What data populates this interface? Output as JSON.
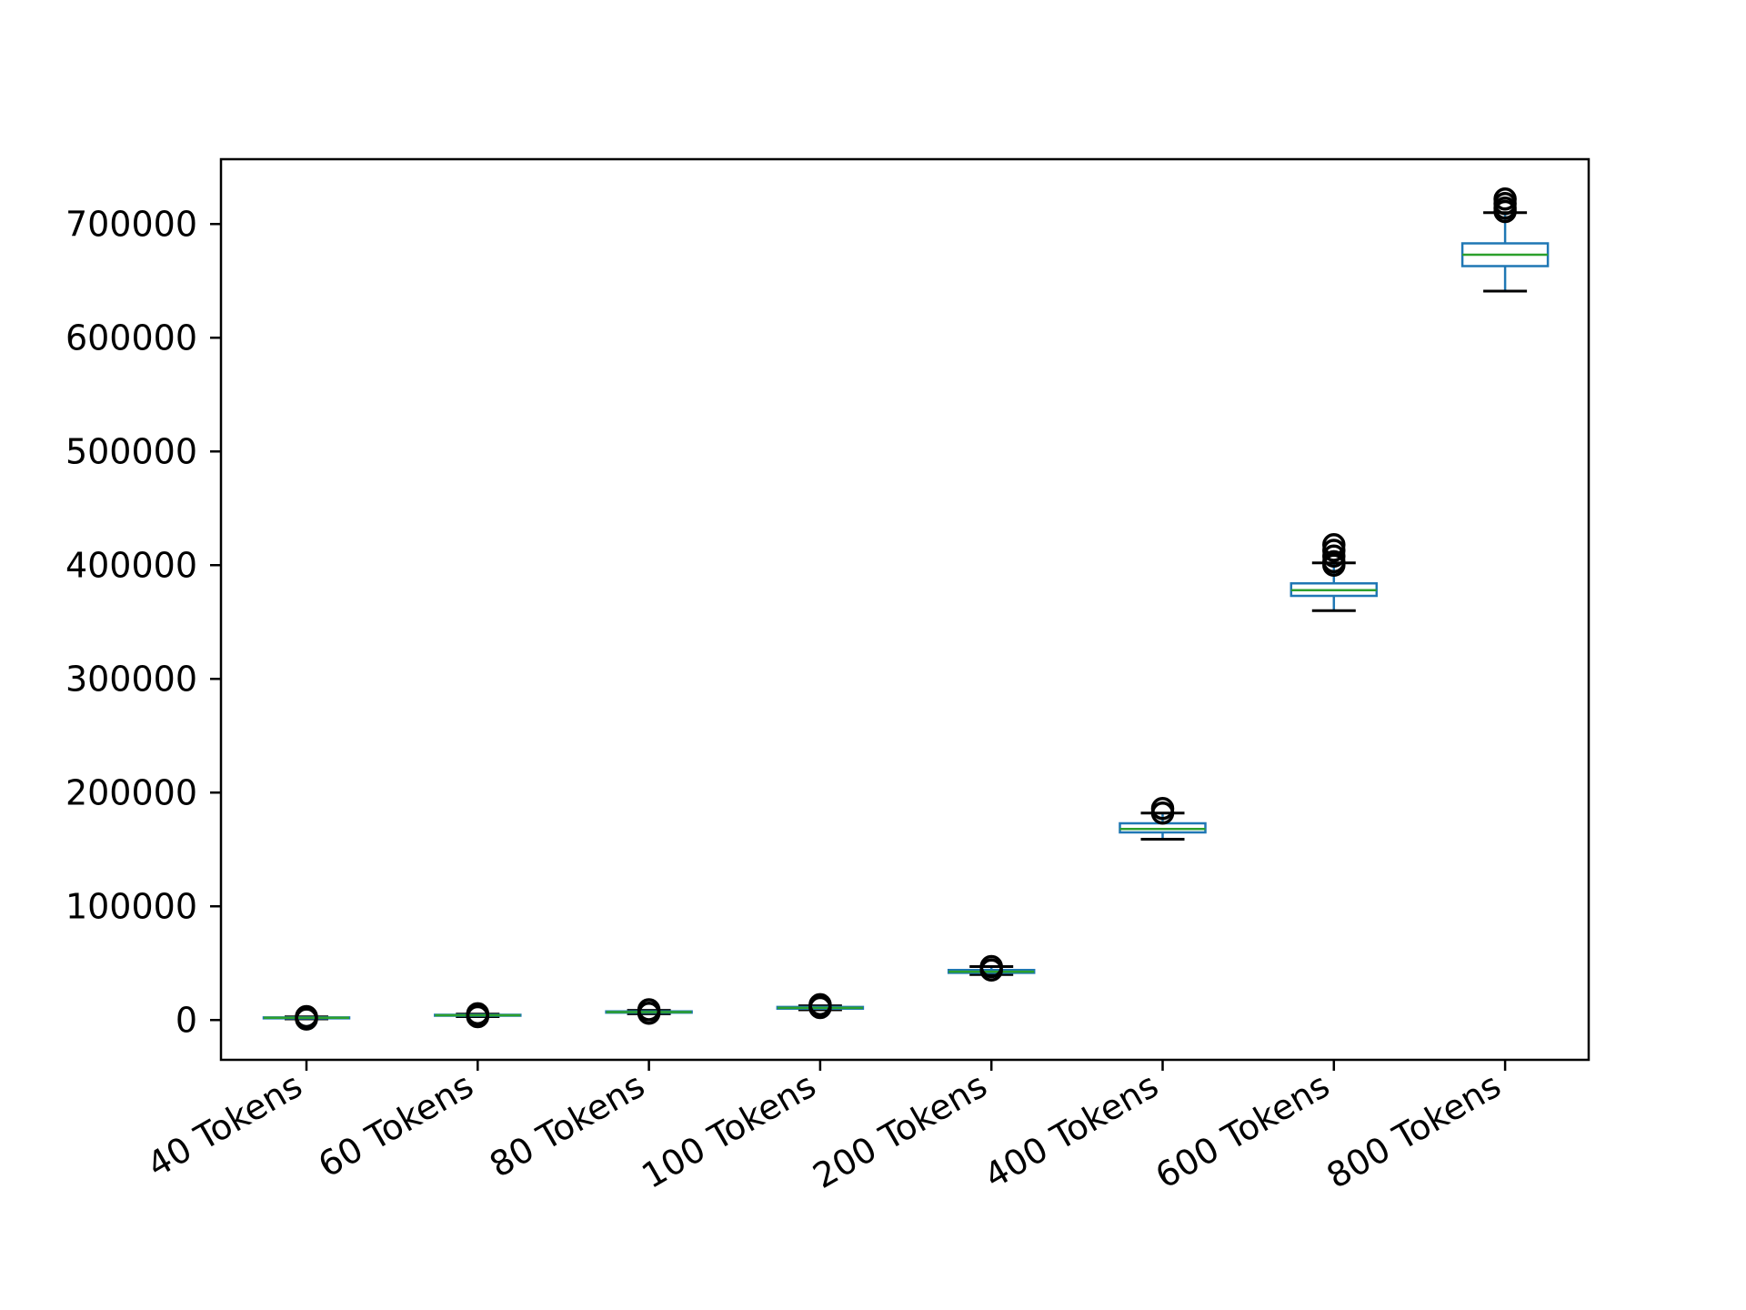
{
  "chart_data": {
    "type": "box",
    "title": "",
    "xlabel": "",
    "ylabel": "",
    "ylim": [
      -35000,
      757000
    ],
    "yticks": [
      0,
      100000,
      200000,
      300000,
      400000,
      500000,
      600000,
      700000
    ],
    "ytick_labels": [
      "0",
      "100000",
      "200000",
      "300000",
      "400000",
      "500000",
      "600000",
      "700000"
    ],
    "grid": false,
    "categories": [
      "40 Tokens",
      "60 Tokens",
      "80 Tokens",
      "100 Tokens",
      "200 Tokens",
      "400 Tokens",
      "600 Tokens",
      "800 Tokens"
    ],
    "boxes": [
      {
        "whisker_low": 1000,
        "q1": 1800,
        "median": 2000,
        "q3": 2300,
        "whisker_high": 2800,
        "outliers": [
          900,
          3000
        ]
      },
      {
        "whisker_low": 3000,
        "q1": 3800,
        "median": 4200,
        "q3": 4600,
        "whisker_high": 5200,
        "outliers": [
          3000,
          5500
        ]
      },
      {
        "whisker_low": 5500,
        "q1": 6500,
        "median": 7000,
        "q3": 7600,
        "whisker_high": 8500,
        "outliers": [
          6000,
          9000
        ]
      },
      {
        "whisker_low": 9000,
        "q1": 10000,
        "median": 10700,
        "q3": 11500,
        "whisker_high": 12500,
        "outliers": [
          11000,
          13500
        ]
      },
      {
        "whisker_low": 40000,
        "q1": 41500,
        "median": 42500,
        "q3": 44000,
        "whisker_high": 47000,
        "outliers": [
          44000,
          47000
        ]
      },
      {
        "whisker_low": 159000,
        "q1": 165000,
        "median": 168000,
        "q3": 173000,
        "whisker_high": 182000,
        "outliers": [
          182000,
          186000
        ]
      },
      {
        "whisker_low": 360000,
        "q1": 373000,
        "median": 378000,
        "q3": 384000,
        "whisker_high": 402000,
        "outliers": [
          400000,
          403000,
          408000,
          413000,
          418000
        ]
      },
      {
        "whisker_low": 641000,
        "q1": 663000,
        "median": 673000,
        "q3": 683000,
        "whisker_high": 710000,
        "outliers": [
          711000,
          714000,
          718000,
          722000
        ]
      }
    ],
    "colors": {
      "box": "#1f77b4",
      "median": "#2ca02c",
      "whisker": "#1f77b4",
      "cap": "#000000",
      "outlier": "#000000",
      "axis": "#000000"
    }
  }
}
